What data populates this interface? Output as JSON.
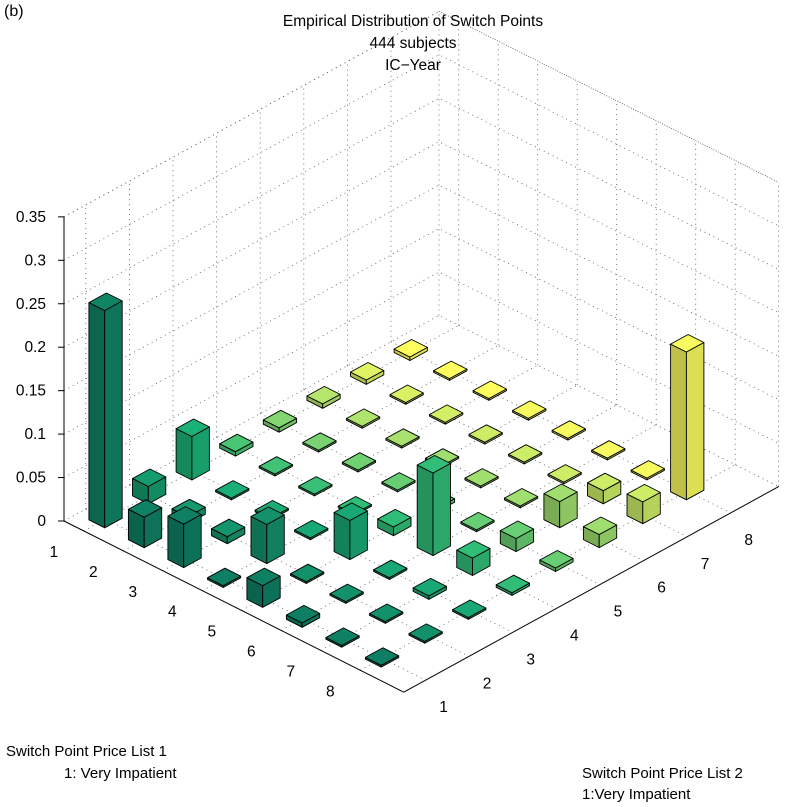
{
  "panel_label": "(b)",
  "chart_data": {
    "type": "bar3d",
    "title": [
      "Empirical Distribution of Switch Points",
      "444 subjects",
      "IC−Year"
    ],
    "x_axis_label": [
      "Switch Point Price List 1",
      "1: Very Impatient"
    ],
    "y_axis_label": [
      "Switch Point Price List 2",
      "1:Very Impatient"
    ],
    "x_categories": [
      "1",
      "2",
      "3",
      "4",
      "5",
      "6",
      "7",
      "8"
    ],
    "y_categories": [
      "1",
      "2",
      "3",
      "4",
      "5",
      "6",
      "7",
      "8"
    ],
    "z_ticks": [
      "0",
      "0.05",
      "0.1",
      "0.15",
      "0.2",
      "0.25",
      "0.3",
      "0.35"
    ],
    "zlim": [
      0,
      0.35
    ],
    "grid": true,
    "colormap": "summer",
    "values": [
      [
        0.25,
        0.02,
        0.05,
        0.005,
        0.005,
        0.005,
        0.005,
        0.004
      ],
      [
        0.035,
        0.008,
        0.002,
        0.002,
        0.002,
        0.002,
        0.002,
        0.002
      ],
      [
        0.05,
        0.008,
        0.002,
        0.002,
        0.002,
        0.002,
        0.002,
        0.002
      ],
      [
        0.002,
        0.045,
        0.002,
        0.002,
        0.002,
        0.002,
        0.002,
        0.002
      ],
      [
        0.025,
        0.002,
        0.045,
        0.01,
        0.004,
        0.002,
        0.002,
        0.002
      ],
      [
        0.005,
        0.002,
        0.002,
        0.095,
        0.002,
        0.002,
        0.002,
        0.002
      ],
      [
        0.002,
        0.002,
        0.004,
        0.02,
        0.015,
        0.03,
        0.015,
        0.002
      ],
      [
        0.002,
        0.002,
        0.002,
        0.003,
        0.004,
        0.015,
        0.025,
        0.17
      ]
    ]
  }
}
